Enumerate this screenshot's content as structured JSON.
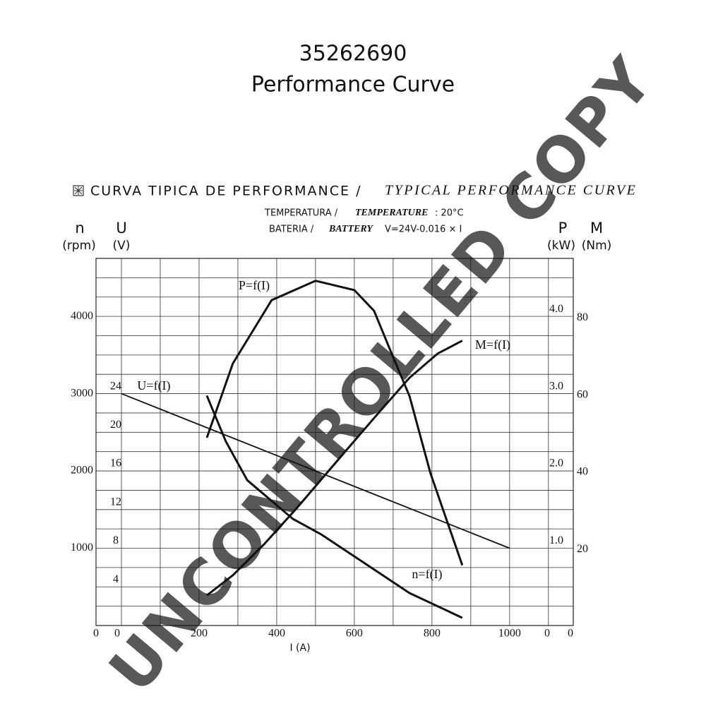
{
  "chart_data": {
    "type": "line",
    "title": "35262690",
    "subtitle": "Performance Curve",
    "heading_pt": "CURVA TIPICA DE PERFORMANCE /",
    "heading_en": "TYPICAL PERFORMANCE CURVE",
    "temp_pt": "TEMPERATURA /",
    "temp_en": "TEMPERATURE",
    "temp_value": ": 20°C",
    "battery_pt": "BATERIA /",
    "battery_en": "BATTERY",
    "battery_value": "V=24V-0.016 × I",
    "watermark": "UNCONTROLLED COPY",
    "x_label": "I (A)",
    "n_symbol": "n",
    "n_unit": "(rpm)",
    "u_symbol": "U",
    "u_unit": "(V)",
    "p_symbol": "P",
    "p_unit": "(kW)",
    "m_symbol": "M",
    "m_unit": "(Nm)",
    "xlim": [
      -65.5,
      1164
    ],
    "xticks": [
      0,
      200,
      400,
      600,
      800,
      1000
    ],
    "xgrid": [
      0,
      100,
      200,
      300,
      400,
      500,
      600,
      700,
      800,
      900,
      1000,
      1100
    ],
    "ylim": [
      0,
      4750
    ],
    "yticks": [
      0,
      1000,
      2000,
      3000,
      4000
    ],
    "ygrid": [
      250,
      500,
      750,
      1000,
      1250,
      1500,
      1750,
      2000,
      2250,
      2500,
      2750,
      3000,
      3250,
      3500,
      3750,
      4000,
      4250,
      4500
    ],
    "ulim": [
      0,
      38
    ],
    "uticks": [
      4,
      8,
      12,
      16,
      20,
      24
    ],
    "plim": [
      0,
      4.75
    ],
    "pticks": [
      0,
      {
        "value": 1,
        "label": "1.0"
      },
      {
        "value": 2,
        "label": "2.0"
      },
      {
        "value": 3,
        "label": "3.0"
      },
      {
        "value": 4,
        "label": "4.0"
      }
    ],
    "mlim": [
      0,
      95
    ],
    "mticks": [
      0,
      20,
      40,
      60,
      80
    ],
    "grid": true,
    "series": [
      {
        "name": "P=f(I)",
        "axis": "p",
        "color": "#111111",
        "x": [
          220,
          287,
          387,
          500,
          600,
          651,
          696,
          742,
          796,
          878
        ],
        "values": [
          2.43,
          3.39,
          4.21,
          4.46,
          4.34,
          4.07,
          3.52,
          2.97,
          1.97,
          0.78
        ]
      },
      {
        "name": "M=f(I)",
        "axis": "m",
        "color": "#111111",
        "x": [
          220,
          287,
          369,
          451,
          560,
          669,
          742,
          815,
          878
        ],
        "values": [
          7.8,
          13.0,
          21.2,
          30.3,
          43.1,
          55.8,
          64.1,
          70.4,
          73.7
        ]
      },
      {
        "name": "U=f(I)",
        "axis": "u",
        "color": "#111111",
        "x": [
          0,
          1000
        ],
        "values": [
          24,
          8
        ]
      },
      {
        "name": "n=f(I)",
        "axis": "n",
        "color": "#111111",
        "x": [
          220,
          269,
          324,
          442,
          515,
          633,
          742,
          878
        ],
        "values": [
          2974,
          2381,
          1880,
          1378,
          1177,
          785,
          420,
          100
        ]
      }
    ]
  }
}
